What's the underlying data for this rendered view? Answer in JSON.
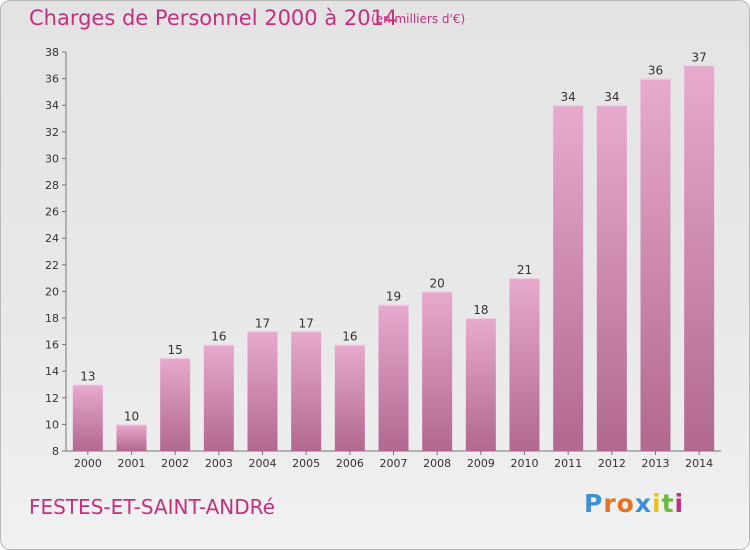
{
  "title": "Charges de Personnel 2000 à 2014",
  "subtitle": "(en milliers d'€)",
  "commune": "FESTES-ET-SAINT-ANDRé",
  "logo": {
    "letters": [
      "P",
      "r",
      "o",
      "x",
      "i",
      "t",
      "i"
    ],
    "colors": [
      "#3d8fd6",
      "#e8731f",
      "#e8731f",
      "#3d8fd6",
      "#e8c41f",
      "#6cba3d",
      "#c4307e"
    ]
  },
  "colors": {
    "accent": "#c4307e",
    "bar_top": "#e7aacd",
    "bar_bottom": "#b2688f"
  },
  "chart_data": {
    "type": "bar",
    "categories": [
      "2000",
      "2001",
      "2002",
      "2003",
      "2004",
      "2005",
      "2006",
      "2007",
      "2008",
      "2009",
      "2010",
      "2011",
      "2012",
      "2013",
      "2014"
    ],
    "values": [
      13,
      10,
      15,
      16,
      17,
      17,
      16,
      19,
      20,
      18,
      21,
      34,
      34,
      36,
      37
    ],
    "ylim": [
      8,
      38
    ],
    "yticks": [
      8,
      10,
      12,
      14,
      16,
      18,
      20,
      22,
      24,
      26,
      28,
      30,
      32,
      34,
      36,
      38
    ],
    "grid": false,
    "data_labels": true
  }
}
